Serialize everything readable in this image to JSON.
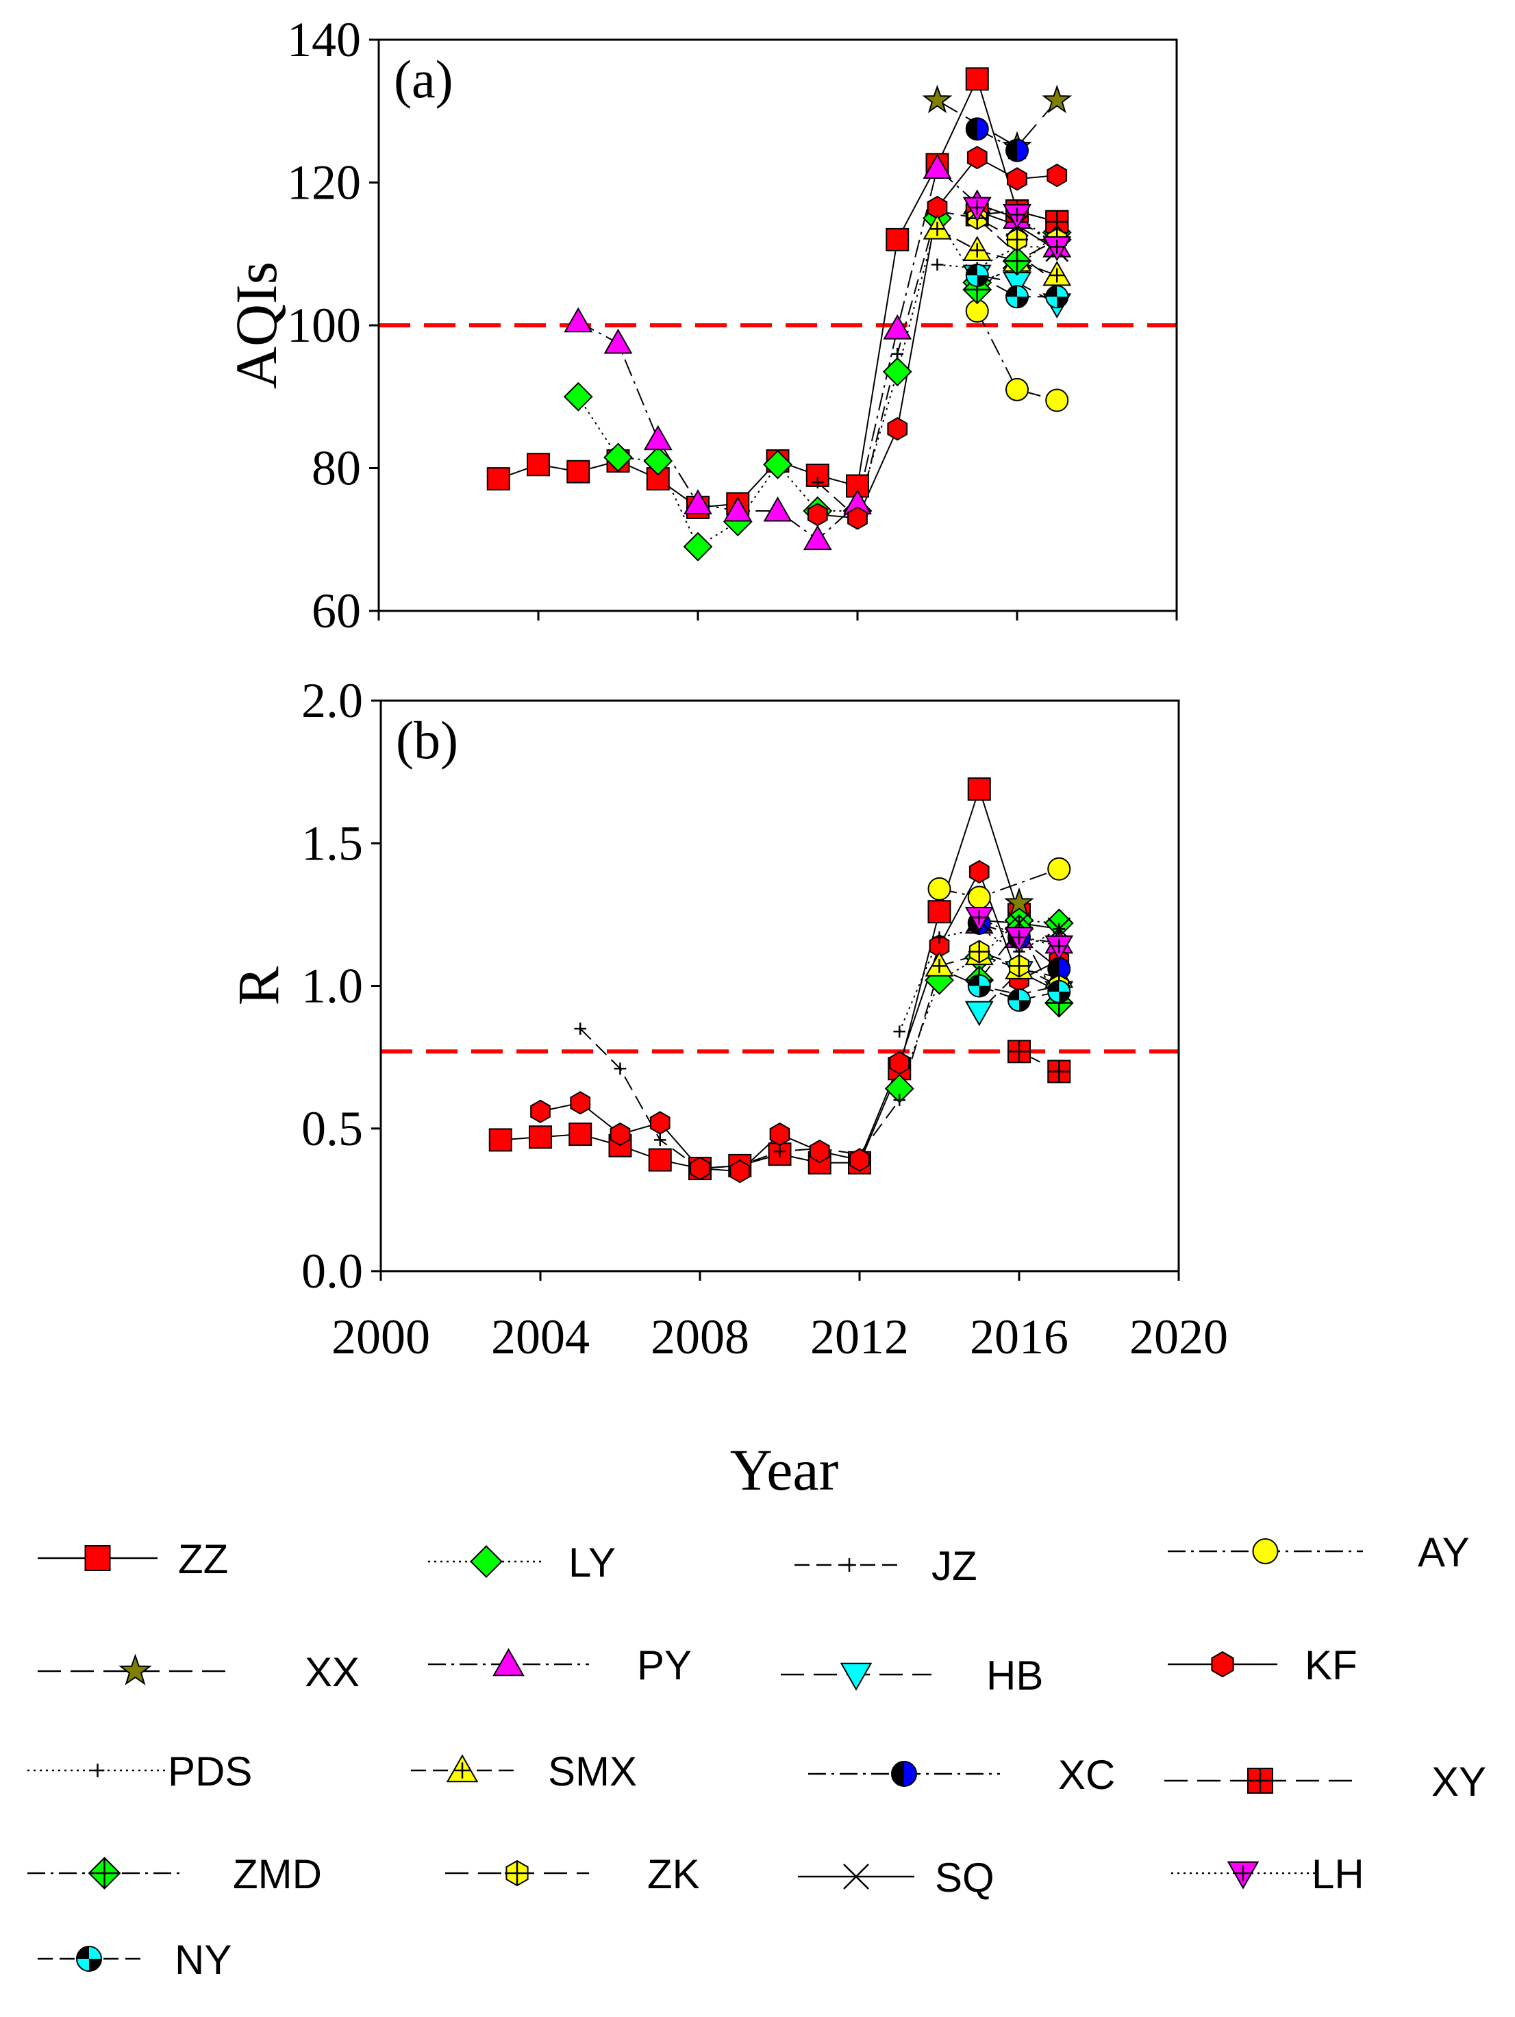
{
  "chart_data": [
    {
      "type": "scatter",
      "panel_label": "(a)",
      "ylabel": "AQIs",
      "xlim": [
        2000,
        2020
      ],
      "ylim": [
        60,
        140
      ],
      "x_ticks": [
        2000,
        2004,
        2008,
        2012,
        2016,
        2020
      ],
      "y_ticks": [
        60,
        80,
        100,
        120,
        140
      ],
      "y_tick_labels": [
        "60",
        "80",
        "100",
        "120",
        "140"
      ],
      "threshold": 100,
      "series": [
        {
          "name": "ZZ",
          "x": [
            2003,
            2004,
            2005,
            2006,
            2007,
            2008,
            2009,
            2010,
            2011,
            2012,
            2013,
            2014,
            2015,
            2016,
            2017
          ],
          "y": [
            78.5,
            80.5,
            79.5,
            81,
            78.5,
            74.5,
            75,
            81,
            79,
            77.5,
            112,
            122.5,
            134.5,
            116,
            114.5
          ]
        },
        {
          "name": "LY",
          "x": [
            2005,
            2006,
            2007,
            2008,
            2009,
            2010,
            2011,
            2012,
            2013,
            2014,
            2015,
            2016,
            2017
          ],
          "y": [
            90,
            81.5,
            81,
            69,
            72.5,
            80.5,
            74,
            74,
            93.5,
            115,
            106,
            108,
            113
          ]
        },
        {
          "name": "JZ",
          "x": [
            2011,
            2012,
            2013,
            2014,
            2015,
            2016,
            2017
          ],
          "y": [
            78,
            73,
            96,
            116,
            115,
            110,
            106
          ]
        },
        {
          "name": "AY",
          "x": [
            2015,
            2016,
            2017
          ],
          "y": [
            102,
            91,
            89.5
          ]
        },
        {
          "name": "XX",
          "x": [
            2014,
            2016,
            2017
          ],
          "y": [
            131.5,
            125,
            131.5
          ]
        },
        {
          "name": "PY",
          "x": [
            2005,
            2006,
            2007,
            2008,
            2009,
            2010,
            2011,
            2012,
            2013,
            2014,
            2015,
            2016,
            2017
          ],
          "y": [
            100.5,
            97.5,
            84,
            75,
            74,
            74,
            70,
            75,
            99.5,
            122,
            117,
            115,
            111
          ]
        },
        {
          "name": "HB",
          "x": [
            2015,
            2016,
            2017
          ],
          "y": [
            107,
            106,
            103
          ]
        },
        {
          "name": "KF",
          "x": [
            2011,
            2012,
            2013,
            2014,
            2015,
            2016,
            2017
          ],
          "y": [
            73.5,
            73,
            85.5,
            116.5,
            123.5,
            120.5,
            121
          ]
        },
        {
          "name": "PDS",
          "x": [
            2014,
            2015,
            2016,
            2017
          ],
          "y": [
            108.5,
            108,
            111,
            111
          ]
        },
        {
          "name": "SMX",
          "x": [
            2014,
            2015,
            2016,
            2017
          ],
          "y": [
            113.5,
            110.5,
            109,
            107
          ]
        },
        {
          "name": "XC",
          "x": [
            2015,
            2016
          ],
          "y": [
            127.5,
            124.5
          ]
        },
        {
          "name": "XY",
          "x": [
            2015,
            2016,
            2017
          ],
          "y": [
            115.5,
            116,
            114.5
          ]
        },
        {
          "name": "ZMD",
          "x": [
            2015,
            2016,
            2017
          ],
          "y": [
            105,
            109,
            112
          ]
        },
        {
          "name": "ZK",
          "x": [
            2015,
            2016,
            2017
          ],
          "y": [
            115,
            112,
            112
          ]
        },
        {
          "name": "SQ",
          "x": [
            2015,
            2016,
            2017
          ],
          "y": [
            116,
            114,
            110.5
          ]
        },
        {
          "name": "LH",
          "x": [
            2015,
            2016,
            2017
          ],
          "y": [
            116.5,
            115.5,
            111
          ]
        },
        {
          "name": "NY",
          "x": [
            2015,
            2016,
            2017
          ],
          "y": [
            107,
            104,
            104
          ]
        }
      ]
    },
    {
      "type": "scatter",
      "panel_label": "(b)",
      "ylabel": "R",
      "xlabel": "Year",
      "xlim": [
        2000,
        2020
      ],
      "ylim": [
        0,
        2.0
      ],
      "x_ticks": [
        2000,
        2004,
        2008,
        2012,
        2016,
        2020
      ],
      "x_tick_labels": [
        "2000",
        "2004",
        "2008",
        "2012",
        "2016",
        "2020"
      ],
      "y_ticks": [
        0,
        0.5,
        1.0,
        1.5,
        2.0
      ],
      "y_tick_labels": [
        "0.0",
        "0.5",
        "1.0",
        "1.5",
        "2.0"
      ],
      "threshold": 0.77,
      "series": [
        {
          "name": "ZZ",
          "x": [
            2003,
            2004,
            2005,
            2006,
            2007,
            2008,
            2009,
            2010,
            2011,
            2012,
            2013,
            2014,
            2015,
            2016
          ],
          "y": [
            0.46,
            0.47,
            0.48,
            0.44,
            0.39,
            0.36,
            0.37,
            0.41,
            0.38,
            0.38,
            0.71,
            1.26,
            1.69,
            1.25
          ]
        },
        {
          "name": "LY",
          "x": [
            2013,
            2014,
            2015,
            2016,
            2017
          ],
          "y": [
            0.64,
            1.02,
            1.1,
            1.23,
            1.22
          ]
        },
        {
          "name": "JZ",
          "x": [
            2005,
            2006,
            2007,
            2008,
            2009,
            2010,
            2011,
            2012,
            2013,
            2014,
            2015,
            2016,
            2017
          ],
          "y": [
            0.85,
            0.71,
            0.46,
            0.36,
            0.37,
            0.42,
            0.43,
            0.41,
            0.6,
            1.06,
            1.0,
            0.97,
            1.0
          ]
        },
        {
          "name": "AY",
          "x": [
            2014,
            2015,
            2017
          ],
          "y": [
            1.34,
            1.31,
            1.41
          ]
        },
        {
          "name": "XX",
          "x": [
            2016
          ],
          "y": [
            1.29
          ]
        },
        {
          "name": "PY",
          "x": [
            2015,
            2016,
            2017
          ],
          "y": [
            1.22,
            1.17,
            1.15
          ]
        },
        {
          "name": "HB",
          "x": [
            2015,
            2016,
            2017
          ],
          "y": [
            0.91,
            1.05,
            0.98
          ]
        },
        {
          "name": "KF",
          "x": [
            2004,
            2005,
            2006,
            2007,
            2008,
            2009,
            2010,
            2011,
            2012,
            2013,
            2014,
            2015,
            2016,
            2017
          ],
          "y": [
            0.56,
            0.59,
            0.48,
            0.52,
            0.36,
            0.35,
            0.48,
            0.42,
            0.39,
            0.73,
            1.14,
            1.4,
            1.02,
            1.09
          ]
        },
        {
          "name": "PDS",
          "x": [
            2013,
            2014,
            2015,
            2016,
            2017
          ],
          "y": [
            0.84,
            1.17,
            1.2,
            1.12,
            1.2
          ]
        },
        {
          "name": "SMX",
          "x": [
            2014,
            2015,
            2016,
            2017
          ],
          "y": [
            1.07,
            1.11,
            1.06,
            1.03
          ]
        },
        {
          "name": "XC",
          "x": [
            2015,
            2016,
            2017
          ],
          "y": [
            1.22,
            1.17,
            1.06
          ]
        },
        {
          "name": "XY",
          "x": [
            2016,
            2017
          ],
          "y": [
            0.77,
            0.7
          ]
        },
        {
          "name": "ZMD",
          "x": [
            2015,
            2016,
            2017
          ],
          "y": [
            1.02,
            1.2,
            0.94
          ]
        },
        {
          "name": "ZK",
          "x": [
            2015,
            2016,
            2017
          ],
          "y": [
            1.12,
            1.07,
            1.0
          ]
        },
        {
          "name": "SQ",
          "x": [
            2015,
            2016,
            2017
          ],
          "y": [
            1.23,
            1.22,
            1.2
          ]
        },
        {
          "name": "LH",
          "x": [
            2015,
            2016,
            2017
          ],
          "y": [
            1.24,
            1.17,
            1.14
          ]
        },
        {
          "name": "NY",
          "x": [
            2015,
            2016,
            2017
          ],
          "y": [
            1.0,
            0.95,
            0.98
          ]
        }
      ]
    }
  ],
  "styles": {
    "ZZ": {
      "marker": "square",
      "color": "#ff0000",
      "line": "solid"
    },
    "LY": {
      "marker": "diamond",
      "color": "#00ff00",
      "line": "dotted"
    },
    "JZ": {
      "marker": "plus",
      "color": "#000000",
      "line": "dash"
    },
    "AY": {
      "marker": "circle",
      "color": "#ffff00",
      "line": "dashdot"
    },
    "XX": {
      "marker": "star",
      "color": "#808000",
      "line": "longdash"
    },
    "PY": {
      "marker": "triangle-up",
      "color": "#ff00ff",
      "line": "dashdot"
    },
    "HB": {
      "marker": "triangle-down",
      "color": "#00ffff",
      "line": "longdash"
    },
    "KF": {
      "marker": "hexagon",
      "color": "#ff0000",
      "line": "solid"
    },
    "PDS": {
      "marker": "plus",
      "color": "#000000",
      "line": "dotted"
    },
    "SMX": {
      "marker": "triangle-up-plus",
      "color": "#ffff00",
      "line": "dash"
    },
    "XC": {
      "marker": "circle-half",
      "color": "#0000ff",
      "line": "dashdot"
    },
    "XY": {
      "marker": "square-plus",
      "color": "#ff0000",
      "line": "longdash"
    },
    "ZMD": {
      "marker": "diamond-plus",
      "color": "#00ff00",
      "line": "dashdot"
    },
    "ZK": {
      "marker": "hexagon-plus",
      "color": "#ffff00",
      "line": "longdash"
    },
    "SQ": {
      "marker": "x",
      "color": "#000000",
      "line": "solid"
    },
    "LH": {
      "marker": "triangle-down-plus",
      "color": "#ff00ff",
      "line": "dotted"
    },
    "NY": {
      "marker": "circle-quarter",
      "color": "#00ffff",
      "line": "dash"
    }
  },
  "threshold_color": "#ff0000",
  "legend": {
    "entries": [
      "ZZ",
      "LY",
      "JZ",
      "AY",
      "XX",
      "PY",
      "HB",
      "KF",
      "PDS",
      "SMX",
      "XC",
      "XY",
      "ZMD",
      "ZK",
      "SQ",
      "LH",
      "NY"
    ]
  }
}
